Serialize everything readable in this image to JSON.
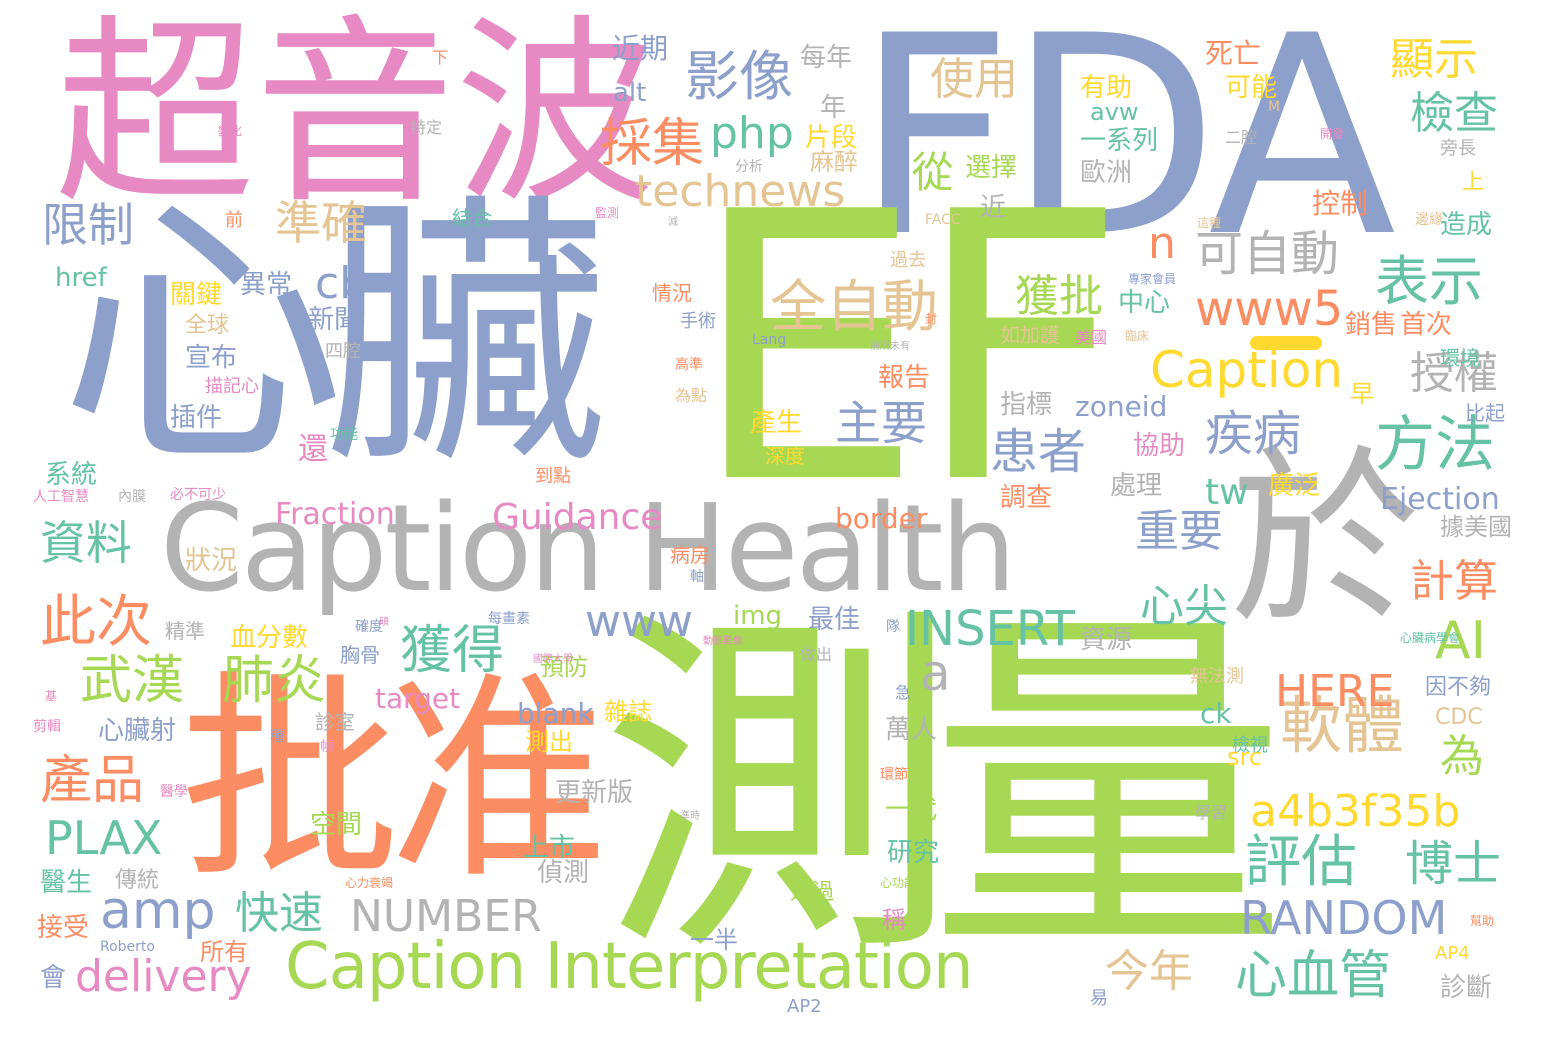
{
  "title": "",
  "colors": {
    "pink": "#e78ac3",
    "blue": "#8da0cb",
    "green": "#a6d854",
    "orange": "#fc8d62",
    "gray": "#b3b3b3",
    "tan": "#e5c494",
    "teal": "#66c2a5",
    "yellow": "#ffd92f"
  },
  "words": [
    {
      "text": "超音波"
    },
    {
      "text": "FDA"
    },
    {
      "text": "心臟"
    },
    {
      "text": "EF"
    },
    {
      "text": "測量"
    },
    {
      "text": "批准"
    },
    {
      "text": "Caption Health"
    },
    {
      "text": "於"
    },
    {
      "text": "Caption Interpretation"
    },
    {
      "text": "影像"
    },
    {
      "text": "採集"
    },
    {
      "text": "php"
    },
    {
      "text": "technews"
    },
    {
      "text": "使用"
    },
    {
      "text": "從"
    },
    {
      "text": "顯示"
    },
    {
      "text": "檢查"
    },
    {
      "text": "準確"
    },
    {
      "text": "限制"
    },
    {
      "text": "全自動"
    },
    {
      "text": "可自動"
    },
    {
      "text": "表示"
    },
    {
      "text": "獲批"
    },
    {
      "text": "www5"
    },
    {
      "text": "Caption"
    },
    {
      "text": "cb"
    },
    {
      "text": "n"
    },
    {
      "text": "方法"
    },
    {
      "text": "疾病"
    },
    {
      "text": "患者"
    },
    {
      "text": "主要"
    },
    {
      "text": "授權"
    },
    {
      "text": "資料"
    },
    {
      "text": "Guidance"
    },
    {
      "text": "Fraction"
    },
    {
      "text": "border"
    },
    {
      "text": "Ejection"
    },
    {
      "text": "重要"
    },
    {
      "text": "心尖"
    },
    {
      "text": "計算"
    },
    {
      "text": "此次"
    },
    {
      "text": "www"
    },
    {
      "text": "INSERT"
    },
    {
      "text": "AI"
    },
    {
      "text": "武漢"
    },
    {
      "text": "肺炎"
    },
    {
      "text": "獲得"
    },
    {
      "text": "a"
    },
    {
      "text": "軟體"
    },
    {
      "text": "HERE"
    },
    {
      "text": "產品"
    },
    {
      "text": "amp"
    },
    {
      "text": "快速"
    },
    {
      "text": "NUMBER"
    },
    {
      "text": "評估"
    },
    {
      "text": "博士"
    },
    {
      "text": "a4b3f35b"
    },
    {
      "text": "PLAX"
    },
    {
      "text": "RANDOM"
    },
    {
      "text": "delivery"
    },
    {
      "text": "今年"
    },
    {
      "text": "心血管"
    },
    {
      "text": "為"
    },
    {
      "text": "tw"
    },
    {
      "text": "zoneid"
    },
    {
      "text": "img"
    },
    {
      "text": "target"
    },
    {
      "text": "blank"
    },
    {
      "text": "ck"
    },
    {
      "text": "src"
    },
    {
      "text": "CDC"
    },
    {
      "text": "AP4"
    },
    {
      "text": "AP2"
    },
    {
      "text": "alt"
    },
    {
      "text": "href"
    },
    {
      "text": "Lang"
    },
    {
      "text": "Roberto"
    },
    {
      "text": "FACC"
    },
    {
      "text": "M"
    },
    {
      "text": "近期"
    },
    {
      "text": "每年"
    },
    {
      "text": "年"
    },
    {
      "text": "片段"
    },
    {
      "text": "麻醉"
    },
    {
      "text": "有助"
    },
    {
      "text": "avw"
    },
    {
      "text": "一系列"
    },
    {
      "text": "可能"
    },
    {
      "text": "死亡"
    },
    {
      "text": "選擇"
    },
    {
      "text": "歐洲"
    },
    {
      "text": "控制"
    },
    {
      "text": "造成"
    },
    {
      "text": "上"
    },
    {
      "text": "近"
    },
    {
      "text": "中心"
    },
    {
      "text": "如加護"
    },
    {
      "text": "美國"
    },
    {
      "text": "銷售"
    },
    {
      "text": "首次"
    },
    {
      "text": "環境"
    },
    {
      "text": "早"
    },
    {
      "text": "指標"
    },
    {
      "text": "比起"
    },
    {
      "text": "關鍵"
    },
    {
      "text": "異常"
    },
    {
      "text": "全球"
    },
    {
      "text": "新聞"
    },
    {
      "text": "宣布"
    },
    {
      "text": "四腔"
    },
    {
      "text": "插件"
    },
    {
      "text": "描記心"
    },
    {
      "text": "報告"
    },
    {
      "text": "產生"
    },
    {
      "text": "深度"
    },
    {
      "text": "協助"
    },
    {
      "text": "處理"
    },
    {
      "text": "廣泛"
    },
    {
      "text": "調查"
    },
    {
      "text": "據美國"
    },
    {
      "text": "系統"
    },
    {
      "text": "還"
    },
    {
      "text": "狀況"
    },
    {
      "text": "人工智慧"
    },
    {
      "text": "內膜"
    },
    {
      "text": "必不可少"
    },
    {
      "text": "病房"
    },
    {
      "text": "到點"
    },
    {
      "text": "資源"
    },
    {
      "text": "最佳"
    },
    {
      "text": "血分數"
    },
    {
      "text": "精準"
    },
    {
      "text": "胸骨"
    },
    {
      "text": "預防"
    },
    {
      "text": "雜誌"
    },
    {
      "text": "測出"
    },
    {
      "text": "心臟射"
    },
    {
      "text": "萬人"
    },
    {
      "text": "更新版"
    },
    {
      "text": "上市"
    },
    {
      "text": "空間"
    },
    {
      "text": "一代"
    },
    {
      "text": "研究"
    },
    {
      "text": "醫生"
    },
    {
      "text": "傳統"
    },
    {
      "text": "偵測"
    },
    {
      "text": "接受"
    },
    {
      "text": "所有"
    },
    {
      "text": "一半"
    },
    {
      "text": "稱"
    },
    {
      "text": "會"
    },
    {
      "text": "易"
    },
    {
      "text": "診斷"
    },
    {
      "text": "旁長"
    },
    {
      "text": "無法測"
    },
    {
      "text": "因不夠"
    },
    {
      "text": "檢視"
    },
    {
      "text": "學習"
    },
    {
      "text": "透過"
    },
    {
      "text": "診室"
    },
    {
      "text": "急"
    },
    {
      "text": "做出"
    },
    {
      "text": "下"
    },
    {
      "text": "特定"
    },
    {
      "text": "分析"
    },
    {
      "text": "前"
    },
    {
      "text": "結合"
    },
    {
      "text": "情況"
    },
    {
      "text": "手術"
    },
    {
      "text": "過去"
    },
    {
      "text": "高準"
    },
    {
      "text": "為點"
    },
    {
      "text": "功能"
    },
    {
      "text": "二腔"
    },
    {
      "text": "開發"
    },
    {
      "text": "邊緣"
    },
    {
      "text": "專家會員"
    },
    {
      "text": "心臟病學會"
    },
    {
      "text": "確度"
    },
    {
      "text": "每畫素"
    },
    {
      "text": "剪輯"
    },
    {
      "text": "醫學"
    },
    {
      "text": "心力衰竭"
    },
    {
      "text": "心功能"
    },
    {
      "text": "幀"
    },
    {
      "text": "環節"
    },
    {
      "text": "幫助"
    },
    {
      "text": "軸"
    },
    {
      "text": "隊"
    },
    {
      "text": "種"
    },
    {
      "text": "基"
    },
    {
      "text": "變化"
    },
    {
      "text": "監測"
    },
    {
      "text": "減"
    },
    {
      "text": "前所未有"
    },
    {
      "text": "碩"
    },
    {
      "text": "國際大學"
    },
    {
      "text": "動態影像"
    },
    {
      "text": "準時"
    },
    {
      "text": "封"
    },
    {
      "text": "這種"
    },
    {
      "text": "臨床"
    }
  ]
}
